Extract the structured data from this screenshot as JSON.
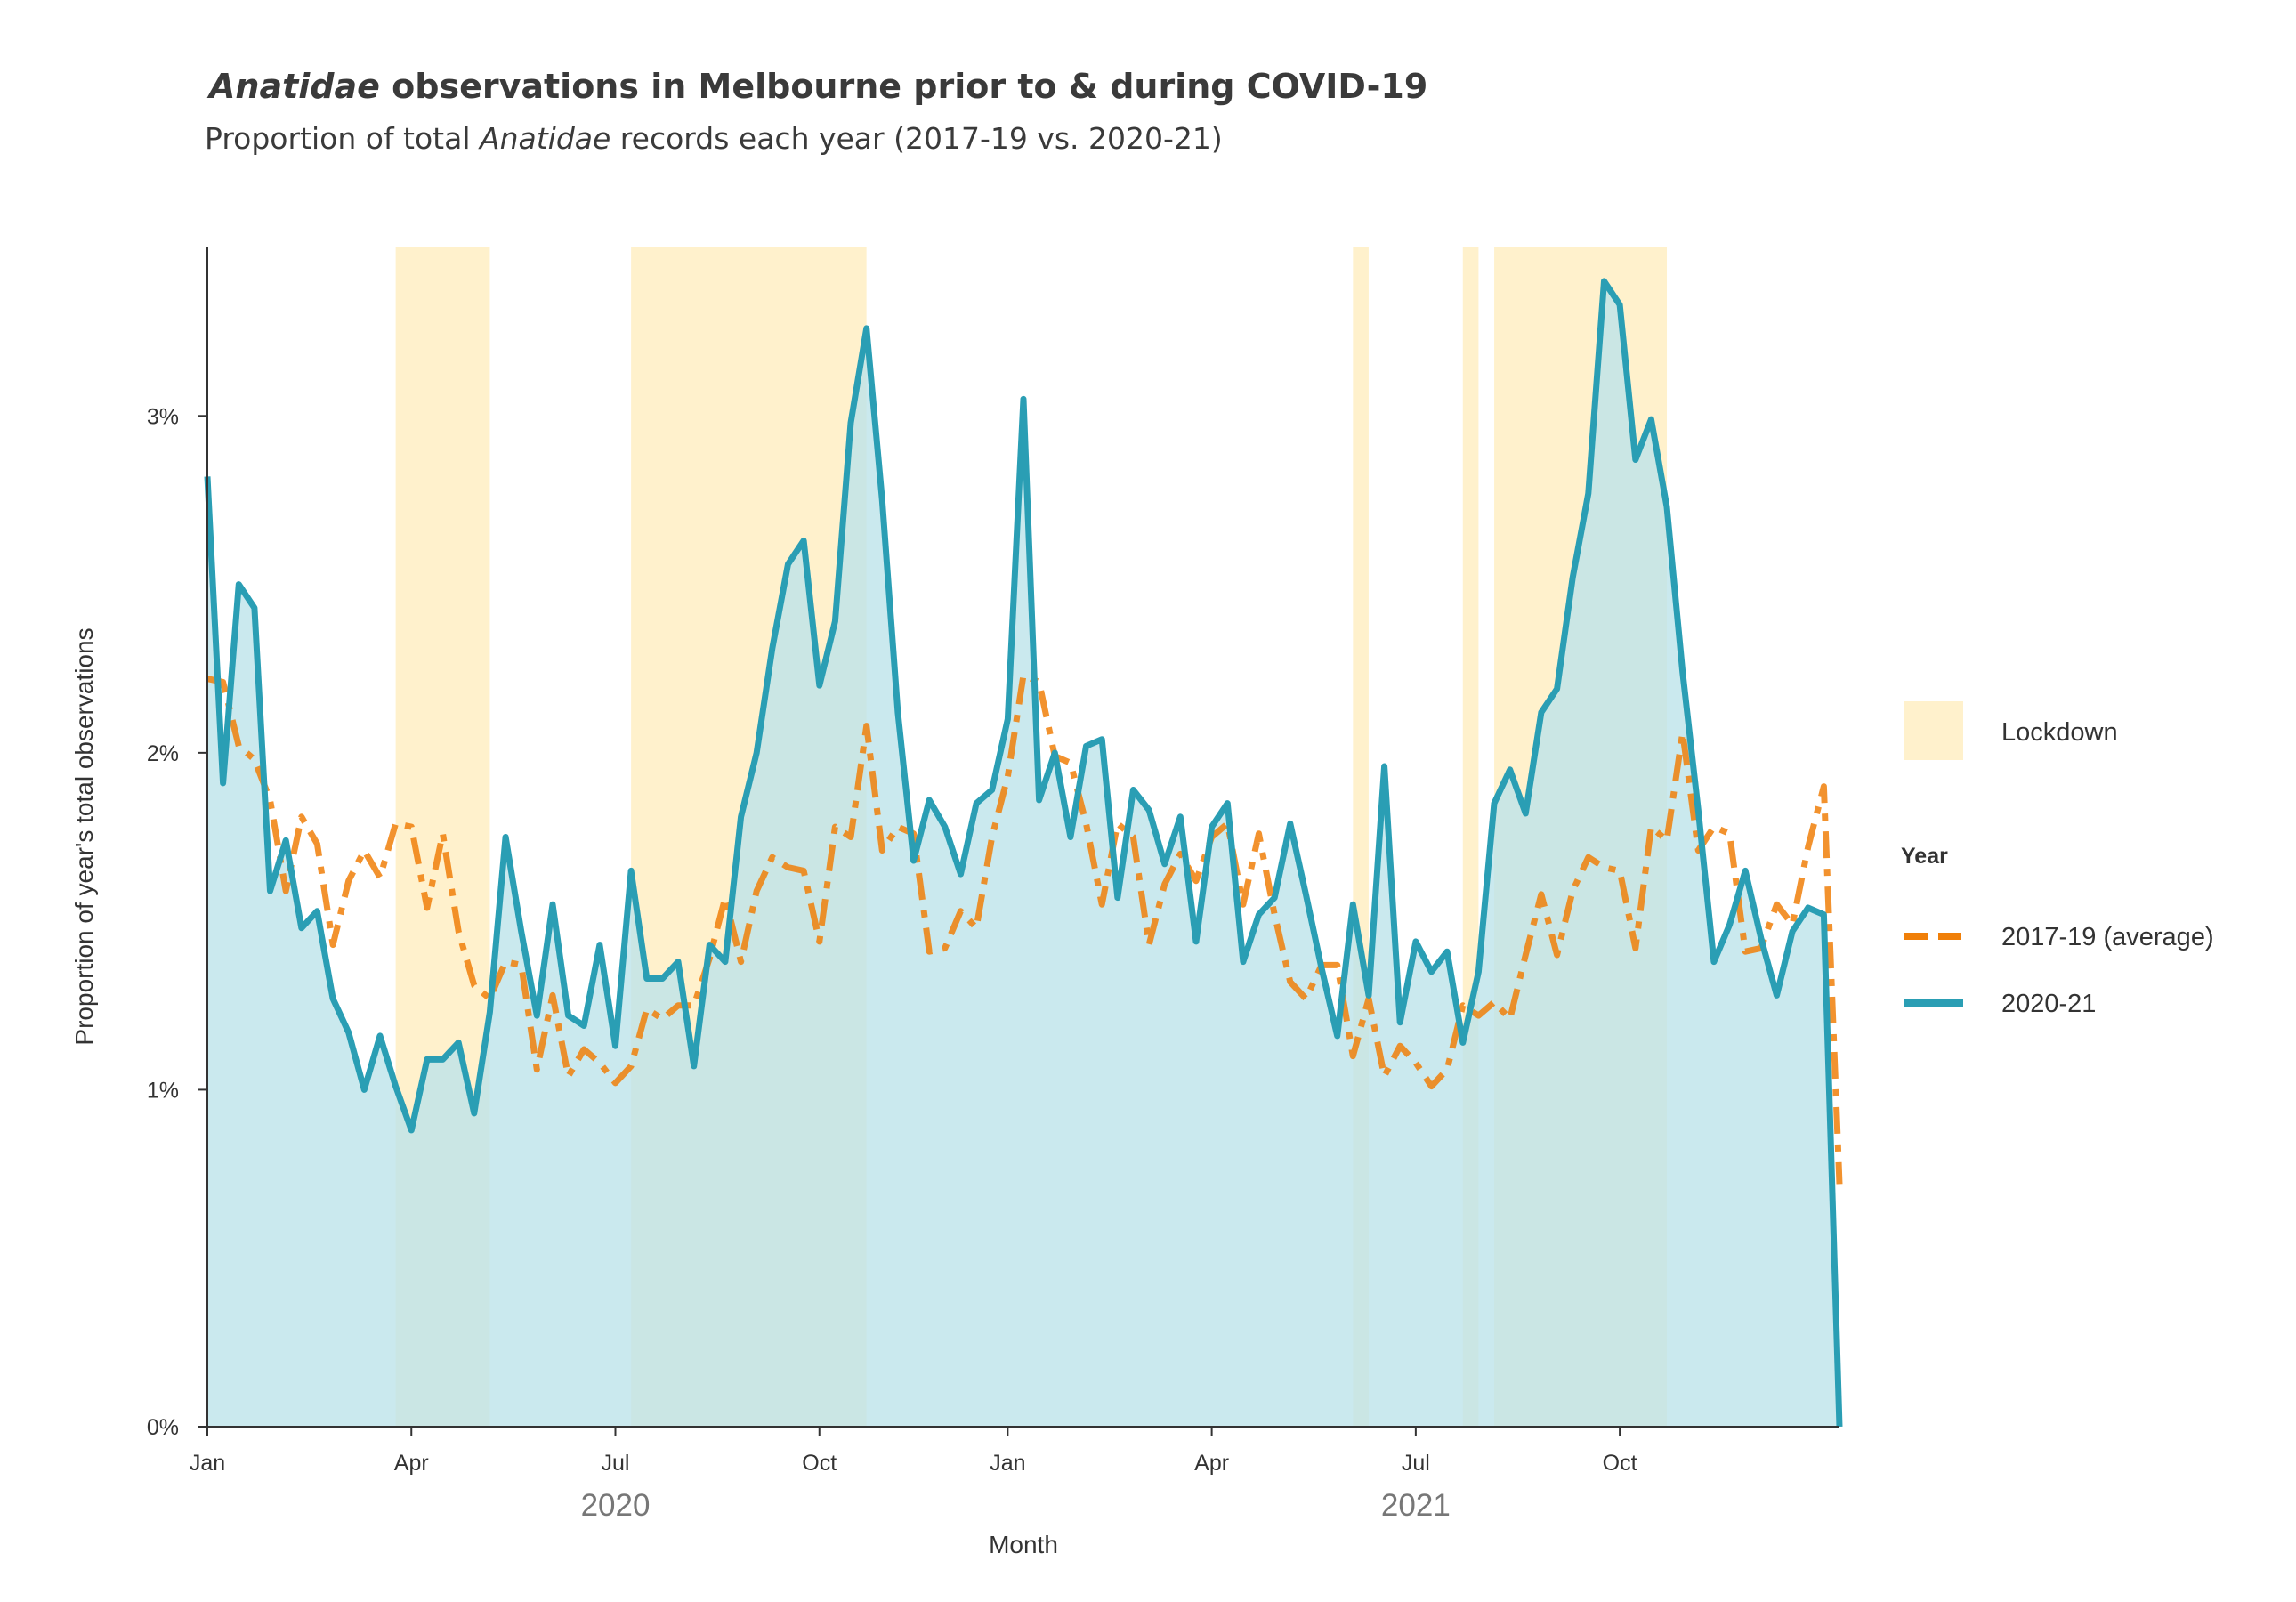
{
  "chart_data": {
    "type": "line",
    "title_part1": "Anatidae",
    "title_part2": " observations in Melbourne prior to & during COVID-19",
    "subtitle_part1": "Proportion of total ",
    "subtitle_part2": "Anatidae",
    "subtitle_part3": " records each year (2017-19 vs. 2020-21)",
    "xlabel": "Month",
    "ylabel": "Proportion of year's total observations",
    "ylim": [
      0,
      0.035
    ],
    "yticks": [
      {
        "value": 0,
        "label": "0%"
      },
      {
        "value": 0.01,
        "label": "1%"
      },
      {
        "value": 0.02,
        "label": "2%"
      },
      {
        "value": 0.03,
        "label": "3%"
      }
    ],
    "xlim": [
      0,
      104
    ],
    "xticks": [
      {
        "week": 0,
        "label": "Jan"
      },
      {
        "week": 13,
        "label": "Apr"
      },
      {
        "week": 26,
        "label": "Jul"
      },
      {
        "week": 39,
        "label": "Oct"
      },
      {
        "week": 51,
        "label": "Jan"
      },
      {
        "week": 64,
        "label": "Apr"
      },
      {
        "week": 77,
        "label": "Jul"
      },
      {
        "week": 90,
        "label": "Oct"
      }
    ],
    "year_labels": [
      {
        "week": 26,
        "label": "2020"
      },
      {
        "week": 77,
        "label": "2021"
      }
    ],
    "x_unit": "week index from Jan 2020",
    "legend": {
      "lockdown_label": "Lockdown",
      "title": "Year",
      "series_labels": [
        "2017-19 (average)",
        "2020-21"
      ]
    },
    "colors": {
      "lockdown": "#fff1cc",
      "avg_line": "#f07f09",
      "line_2020": "#2a9eb4",
      "area_2020": "#bde3ea",
      "axis": "#333333"
    },
    "lockdowns": [
      [
        12,
        18
      ],
      [
        27,
        42
      ],
      [
        73,
        74
      ],
      [
        80,
        81
      ],
      [
        82,
        93
      ]
    ],
    "series": [
      {
        "name": "2017-19 (average)",
        "style": "dashed",
        "values": [
          0.0222,
          0.0221,
          0.0202,
          0.0198,
          0.0186,
          0.0159,
          0.0181,
          0.0173,
          0.0143,
          0.0162,
          0.0171,
          0.0163,
          0.0179,
          0.0178,
          0.0154,
          0.0176,
          0.0147,
          0.0131,
          0.0127,
          0.0138,
          0.0137,
          0.0106,
          0.0128,
          0.0104,
          0.0112,
          0.0108,
          0.0102,
          0.0107,
          0.0124,
          0.0121,
          0.0125,
          0.0125,
          0.0139,
          0.0157,
          0.0138,
          0.0159,
          0.0169,
          0.0166,
          0.0165,
          0.0144,
          0.0178,
          0.0175,
          0.0208,
          0.0171,
          0.0178,
          0.0176,
          0.0141,
          0.0142,
          0.0153,
          0.0148,
          0.0175,
          0.0193,
          0.0223,
          0.0221,
          0.0199,
          0.0197,
          0.0179,
          0.0155,
          0.0179,
          0.0175,
          0.0143,
          0.0161,
          0.017,
          0.0162,
          0.0175,
          0.0179,
          0.0155,
          0.0176,
          0.0152,
          0.0132,
          0.0127,
          0.0137,
          0.0137,
          0.011,
          0.0127,
          0.0104,
          0.0113,
          0.0108,
          0.0101,
          0.0106,
          0.0125,
          0.0122,
          0.0126,
          0.0121,
          0.014,
          0.0158,
          0.014,
          0.0159,
          0.0169,
          0.0166,
          0.0165,
          0.0142,
          0.0178,
          0.0174,
          0.0206,
          0.0171,
          0.0178,
          0.0176,
          0.0141,
          0.0142,
          0.0155,
          0.0149,
          0.0172,
          0.019,
          0.0072
        ]
      },
      {
        "name": "2020-21",
        "style": "solid",
        "values": [
          0.0282,
          0.0191,
          0.025,
          0.0243,
          0.0159,
          0.0174,
          0.0148,
          0.0153,
          0.0127,
          0.0117,
          0.01,
          0.0116,
          0.0101,
          0.0088,
          0.0109,
          0.0109,
          0.0114,
          0.0093,
          0.0123,
          0.0175,
          0.0147,
          0.0122,
          0.0155,
          0.0122,
          0.0119,
          0.0143,
          0.0113,
          0.0165,
          0.0133,
          0.0133,
          0.0138,
          0.0107,
          0.0143,
          0.0138,
          0.0181,
          0.02,
          0.0231,
          0.0256,
          0.0263,
          0.022,
          0.0239,
          0.0298,
          0.0326,
          0.0275,
          0.0212,
          0.0168,
          0.0186,
          0.0178,
          0.0164,
          0.0185,
          0.0189,
          0.021,
          0.0305,
          0.0186,
          0.02,
          0.0175,
          0.0202,
          0.0204,
          0.0157,
          0.0189,
          0.0183,
          0.0167,
          0.0181,
          0.0144,
          0.0178,
          0.0185,
          0.0138,
          0.0152,
          0.0157,
          0.0179,
          0.0158,
          0.0136,
          0.0116,
          0.0155,
          0.0128,
          0.0196,
          0.012,
          0.0144,
          0.0135,
          0.0141,
          0.0114,
          0.0135,
          0.0185,
          0.0195,
          0.0182,
          0.0212,
          0.0219,
          0.0252,
          0.0277,
          0.034,
          0.0333,
          0.0287,
          0.0299,
          0.0273,
          0.0224,
          0.0183,
          0.0138,
          0.0149,
          0.0165,
          0.0145,
          0.0128,
          0.0147,
          0.0154,
          0.0152,
          0.0
        ]
      }
    ]
  }
}
